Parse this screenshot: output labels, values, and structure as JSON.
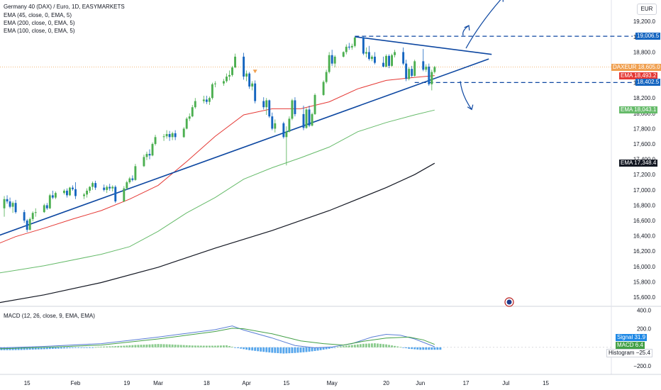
{
  "title": "Germany 40 (DAX) / Euro, 1D, EASYMARKETS",
  "indicators": [
    "EMA (45, close, 0, EMA, 5)",
    "EMA (200, close, 0, EMA, 5)",
    "EMA (100, close, 0, EMA, 5)"
  ],
  "currency": "EUR",
  "colors": {
    "up": "#26a69a",
    "up_candle": "#4caf50",
    "down_candle": "#1565c0",
    "ema45": "#e53935",
    "ema100": "#66bb6a",
    "ema200": "#131722",
    "trendline": "#0d47a1",
    "macd": "#5b7fd6",
    "signal": "#43a047",
    "hist_pos": "#66bb6a",
    "hist_neg": "#1e88e5"
  },
  "price_tags": {
    "resistance": {
      "text": "19,006.5",
      "color": "#1565c0"
    },
    "symbol": {
      "label": "DAXEUR",
      "text": "18,605.0",
      "color": "#f0a050"
    },
    "ema45": {
      "label": "EMA",
      "text": "18,493.2",
      "color": "#e53935"
    },
    "support": {
      "text": "18,402.5",
      "color": "#1565c0"
    },
    "ema100": {
      "label": "EMA",
      "text": "18,043.1",
      "color": "#66bb6a"
    },
    "ema200": {
      "label": "EMA",
      "text": "17,348.4",
      "color": "#131722"
    },
    "signal": {
      "label": "Signal",
      "text": "31.9",
      "color": "#1e88e5"
    },
    "macd": {
      "label": "MACD",
      "text": "6.4",
      "color": "#43a047"
    },
    "histogram": {
      "label": "Histogram",
      "text": "−25.4",
      "color": "#ffffff"
    }
  },
  "macd_title": "MACD (12, 26, close, 9, EMA, EMA)",
  "chart_data": {
    "type": "candlestick",
    "title": "Germany 40 (DAX) / Euro, 1D, EASYMARKETS",
    "price_ticks": [
      "19,200.0",
      "19,000.0",
      "18,800.0",
      "18,600.0",
      "18,400.0",
      "18,200.0",
      "18,000.0",
      "17,800.0",
      "17,600.0",
      "17,400.0",
      "17,200.0",
      "17,000.0",
      "16,800.0",
      "16,600.0",
      "16,400.0",
      "16,200.0",
      "16,000.0",
      "15,800.0",
      "15,600.0"
    ],
    "ylim": [
      15480,
      19480
    ],
    "macd_ticks": [
      "400.0",
      "200.0",
      "0.0",
      "−200.0"
    ],
    "macd_ylim": [
      -290,
      440
    ],
    "x_labels": [
      {
        "label": "15",
        "day": 14
      },
      {
        "label": "Feb",
        "day": 31
      },
      {
        "label": "19",
        "day": 49
      },
      {
        "label": "Mar",
        "day": 60
      },
      {
        "label": "18",
        "day": 77
      },
      {
        "label": "Apr",
        "day": 91
      },
      {
        "label": "15",
        "day": 105
      },
      {
        "label": "May",
        "day": 121
      },
      {
        "label": "20",
        "day": 140
      },
      {
        "label": "Jun",
        "day": 152
      },
      {
        "label": "17",
        "day": 168
      },
      {
        "label": "Jul",
        "day": 182
      },
      {
        "label": "15",
        "day": 196
      }
    ],
    "xlim": [
      4.5,
      219
    ],
    "candles": [
      [
        6,
        16760,
        16920,
        16650,
        16880
      ],
      [
        7,
        16880,
        16930,
        16820,
        16850
      ],
      [
        8,
        16850,
        16900,
        16760,
        16780
      ],
      [
        9,
        16780,
        16850,
        16700,
        16830
      ],
      [
        10,
        16830,
        16870,
        16690,
        16710
      ],
      [
        13,
        16710,
        16740,
        16570,
        16600
      ],
      [
        14,
        16600,
        16620,
        16450,
        16480
      ],
      [
        15,
        16480,
        16640,
        16470,
        16620
      ],
      [
        16,
        16620,
        16720,
        16590,
        16700
      ],
      [
        17,
        16700,
        16760,
        16650,
        16710
      ],
      [
        20,
        16710,
        16820,
        16700,
        16800
      ],
      [
        21,
        16800,
        16830,
        16740,
        16760
      ],
      [
        22,
        16760,
        16950,
        16750,
        16930
      ],
      [
        23,
        16930,
        16990,
        16880,
        16900
      ],
      [
        24,
        16900,
        16980,
        16880,
        16960
      ],
      [
        27,
        16960,
        17010,
        16940,
        16990
      ],
      [
        28,
        16990,
        17020,
        16900,
        16930
      ],
      [
        29,
        16930,
        17040,
        16920,
        17030
      ],
      [
        30,
        17030,
        17060,
        16990,
        17010
      ],
      [
        31,
        17010,
        17100,
        16880,
        16920
      ],
      [
        34,
        16920,
        16960,
        16880,
        16940
      ],
      [
        35,
        16940,
        17020,
        16900,
        16990
      ],
      [
        36,
        16990,
        17050,
        16960,
        17040
      ],
      [
        37,
        17040,
        17110,
        17000,
        17090
      ],
      [
        38,
        17090,
        17120,
        17000,
        17030
      ],
      [
        41,
        17030,
        17070,
        16980,
        17000
      ],
      [
        42,
        17000,
        17060,
        16960,
        17040
      ],
      [
        43,
        17040,
        17080,
        16990,
        17020
      ],
      [
        44,
        17020,
        17060,
        16980,
        17040
      ],
      [
        45,
        17040,
        17060,
        16830,
        16850
      ],
      [
        48,
        16850,
        17050,
        16840,
        17020
      ],
      [
        49,
        17020,
        17120,
        17000,
        17100
      ],
      [
        50,
        17100,
        17170,
        17080,
        17150
      ],
      [
        51,
        17150,
        17190,
        17110,
        17130
      ],
      [
        52,
        17130,
        17340,
        17120,
        17310
      ],
      [
        55,
        17310,
        17460,
        17300,
        17430
      ],
      [
        56,
        17430,
        17500,
        17390,
        17470
      ],
      [
        57,
        17470,
        17530,
        17400,
        17450
      ],
      [
        58,
        17450,
        17620,
        17440,
        17600
      ],
      [
        59,
        17600,
        17720,
        17580,
        17690
      ],
      [
        62,
        17690,
        17730,
        17640,
        17700
      ],
      [
        63,
        17700,
        17780,
        17670,
        17730
      ],
      [
        64,
        17730,
        17770,
        17640,
        17690
      ],
      [
        65,
        17690,
        17760,
        17650,
        17740
      ],
      [
        66,
        17740,
        17780,
        17650,
        17690
      ],
      [
        69,
        17690,
        17820,
        17680,
        17800
      ],
      [
        70,
        17800,
        17950,
        17790,
        17930
      ],
      [
        71,
        17930,
        18000,
        17900,
        17960
      ],
      [
        72,
        17960,
        18110,
        17950,
        18080
      ],
      [
        73,
        18080,
        18200,
        18060,
        18160
      ],
      [
        76,
        18160,
        18230,
        18130,
        18180
      ],
      [
        77,
        18180,
        18230,
        18120,
        18150
      ],
      [
        78,
        18150,
        18220,
        18110,
        18200
      ],
      [
        79,
        18200,
        18400,
        18180,
        18380
      ],
      [
        80,
        18380,
        18420,
        18340,
        18390
      ],
      [
        83,
        18390,
        18450,
        18360,
        18420
      ],
      [
        84,
        18420,
        18520,
        18400,
        18480
      ],
      [
        85,
        18480,
        18560,
        18430,
        18500
      ],
      [
        86,
        18500,
        18620,
        18480,
        18600
      ],
      [
        87,
        18600,
        18780,
        18590,
        18740
      ],
      [
        90,
        18740,
        18790,
        18440,
        18480
      ],
      [
        91,
        18480,
        18560,
        18420,
        18520
      ],
      [
        92,
        18520,
        18540,
        18320,
        18350
      ],
      [
        93,
        18350,
        18420,
        18300,
        18390
      ],
      [
        94,
        18390,
        18430,
        18130,
        18160
      ],
      [
        97,
        18160,
        18210,
        18050,
        18080
      ],
      [
        98,
        18080,
        18200,
        17980,
        18170
      ],
      [
        99,
        18170,
        18180,
        17940,
        17960
      ],
      [
        100,
        17960,
        18010,
        17780,
        17800
      ],
      [
        101,
        17800,
        17920,
        17750,
        17870
      ],
      [
        104,
        17870,
        17890,
        17670,
        17690
      ],
      [
        105,
        17690,
        17830,
        17320,
        17760
      ],
      [
        106,
        17760,
        17960,
        17750,
        17930
      ],
      [
        107,
        17930,
        18190,
        17910,
        18170
      ],
      [
        108,
        18170,
        18210,
        17960,
        17990
      ],
      [
        111,
        17990,
        18100,
        17780,
        17810
      ],
      [
        112,
        17810,
        18070,
        17800,
        18050
      ],
      [
        113,
        18050,
        18100,
        17820,
        17840
      ],
      [
        114,
        17840,
        18010,
        17830,
        17990
      ],
      [
        115,
        17990,
        18260,
        17980,
        18240
      ],
      [
        118,
        18240,
        18430,
        18230,
        18410
      ],
      [
        119,
        18410,
        18570,
        18390,
        18540
      ],
      [
        120,
        18540,
        18800,
        18520,
        18760
      ],
      [
        121,
        18760,
        18830,
        18620,
        18650
      ],
      [
        122,
        18650,
        18760,
        18600,
        18740
      ],
      [
        125,
        18740,
        18810,
        18730,
        18800
      ],
      [
        126,
        18800,
        18900,
        18770,
        18870
      ],
      [
        127,
        18870,
        18920,
        18830,
        18860
      ],
      [
        128,
        18860,
        18910,
        18830,
        18880
      ],
      [
        129,
        18880,
        19000,
        18860,
        18990
      ],
      [
        132,
        18990,
        19010,
        18760,
        18780
      ],
      [
        133,
        18780,
        18860,
        18730,
        18800
      ],
      [
        134,
        18800,
        18880,
        18690,
        18710
      ],
      [
        135,
        18710,
        18760,
        18680,
        18740
      ],
      [
        136,
        18740,
        18800,
        18640,
        18660
      ],
      [
        139,
        18660,
        18740,
        18600,
        18610
      ],
      [
        140,
        18610,
        18770,
        18600,
        18750
      ],
      [
        141,
        18750,
        18770,
        18590,
        18620
      ],
      [
        142,
        18620,
        18780,
        18610,
        18760
      ],
      [
        143,
        18760,
        18830,
        18730,
        18800
      ],
      [
        146,
        18800,
        18860,
        18630,
        18650
      ],
      [
        147,
        18650,
        18700,
        18420,
        18450
      ],
      [
        148,
        18450,
        18600,
        18430,
        18580
      ],
      [
        149,
        18580,
        18620,
        18470,
        18490
      ],
      [
        150,
        18490,
        18700,
        18480,
        18680
      ],
      [
        153,
        18680,
        18840,
        18550,
        18570
      ],
      [
        154,
        18570,
        18640,
        18540,
        18610
      ],
      [
        155,
        18610,
        18650,
        18360,
        18380
      ],
      [
        156,
        18380,
        18570,
        18300,
        18540
      ],
      [
        157,
        18540,
        18620,
        18520,
        18605
      ]
    ],
    "ema45": [
      [
        0,
        16240
      ],
      [
        10,
        16390
      ],
      [
        20,
        16500
      ],
      [
        30,
        16620
      ],
      [
        40,
        16730
      ],
      [
        50,
        16880
      ],
      [
        60,
        17060
      ],
      [
        70,
        17370
      ],
      [
        80,
        17700
      ],
      [
        90,
        17980
      ],
      [
        100,
        18060
      ],
      [
        110,
        18060
      ],
      [
        120,
        18150
      ],
      [
        130,
        18320
      ],
      [
        140,
        18430
      ],
      [
        150,
        18470
      ],
      [
        157,
        18493.2
      ]
    ],
    "ema100": [
      [
        0,
        15890
      ],
      [
        20,
        16010
      ],
      [
        40,
        16160
      ],
      [
        50,
        16260
      ],
      [
        60,
        16460
      ],
      [
        70,
        16700
      ],
      [
        80,
        16900
      ],
      [
        90,
        17140
      ],
      [
        100,
        17290
      ],
      [
        110,
        17420
      ],
      [
        120,
        17560
      ],
      [
        130,
        17760
      ],
      [
        140,
        17880
      ],
      [
        150,
        17980
      ],
      [
        157,
        18043.1
      ]
    ],
    "ema200": [
      [
        0,
        15500
      ],
      [
        20,
        15630
      ],
      [
        40,
        15790
      ],
      [
        60,
        15990
      ],
      [
        80,
        16240
      ],
      [
        100,
        16470
      ],
      [
        120,
        16730
      ],
      [
        140,
        17030
      ],
      [
        150,
        17200
      ],
      [
        157,
        17348.4
      ]
    ],
    "resistance_level": 19006.5,
    "support_level": 18402.5,
    "trend_upper": [
      [
        129,
        19000
      ],
      [
        177,
        18770
      ]
    ],
    "trend_lower": [
      [
        0,
        16350
      ],
      [
        176,
        18710
      ]
    ],
    "projection_up": [
      [
        168,
        18850
      ],
      [
        181,
        19520
      ]
    ],
    "projection_down": [
      [
        166,
        18420
      ],
      [
        170,
        18050
      ]
    ],
    "down_marker": {
      "day": 94,
      "price": 18570
    },
    "macd_line": [
      [
        0,
        -10
      ],
      [
        20,
        10
      ],
      [
        40,
        40
      ],
      [
        60,
        110
      ],
      [
        70,
        150
      ],
      [
        80,
        190
      ],
      [
        86,
        230
      ],
      [
        90,
        185
      ],
      [
        100,
        100
      ],
      [
        108,
        20
      ],
      [
        115,
        -5
      ],
      [
        121,
        5
      ],
      [
        128,
        40
      ],
      [
        135,
        110
      ],
      [
        140,
        140
      ],
      [
        145,
        130
      ],
      [
        150,
        90
      ],
      [
        157,
        6.4
      ]
    ],
    "signal_line": [
      [
        0,
        -20
      ],
      [
        20,
        0
      ],
      [
        40,
        25
      ],
      [
        60,
        90
      ],
      [
        70,
        130
      ],
      [
        80,
        170
      ],
      [
        86,
        205
      ],
      [
        90,
        200
      ],
      [
        100,
        145
      ],
      [
        110,
        70
      ],
      [
        118,
        40
      ],
      [
        125,
        25
      ],
      [
        132,
        65
      ],
      [
        140,
        100
      ],
      [
        148,
        110
      ],
      [
        153,
        80
      ],
      [
        157,
        31.9
      ]
    ],
    "histogram_values": [
      [
        0,
        -40
      ],
      [
        4,
        -30
      ],
      [
        8,
        -30
      ],
      [
        12,
        -28
      ],
      [
        16,
        -24
      ],
      [
        20,
        -20
      ],
      [
        24,
        -15
      ],
      [
        28,
        -10
      ],
      [
        32,
        -5
      ],
      [
        36,
        -3
      ],
      [
        40,
        8
      ],
      [
        44,
        12
      ],
      [
        48,
        18
      ],
      [
        52,
        26
      ],
      [
        56,
        30
      ],
      [
        60,
        36
      ],
      [
        64,
        32
      ],
      [
        68,
        26
      ],
      [
        72,
        20
      ],
      [
        76,
        18
      ],
      [
        80,
        18
      ],
      [
        84,
        22
      ],
      [
        88,
        -8
      ],
      [
        92,
        -30
      ],
      [
        96,
        -45
      ],
      [
        100,
        -58
      ],
      [
        104,
        -66
      ],
      [
        108,
        -60
      ],
      [
        112,
        -50
      ],
      [
        116,
        -35
      ],
      [
        120,
        -15
      ],
      [
        124,
        12
      ],
      [
        128,
        25
      ],
      [
        132,
        38
      ],
      [
        136,
        44
      ],
      [
        140,
        32
      ],
      [
        144,
        10
      ],
      [
        148,
        -15
      ],
      [
        152,
        -26
      ],
      [
        156,
        -25.4
      ]
    ]
  }
}
